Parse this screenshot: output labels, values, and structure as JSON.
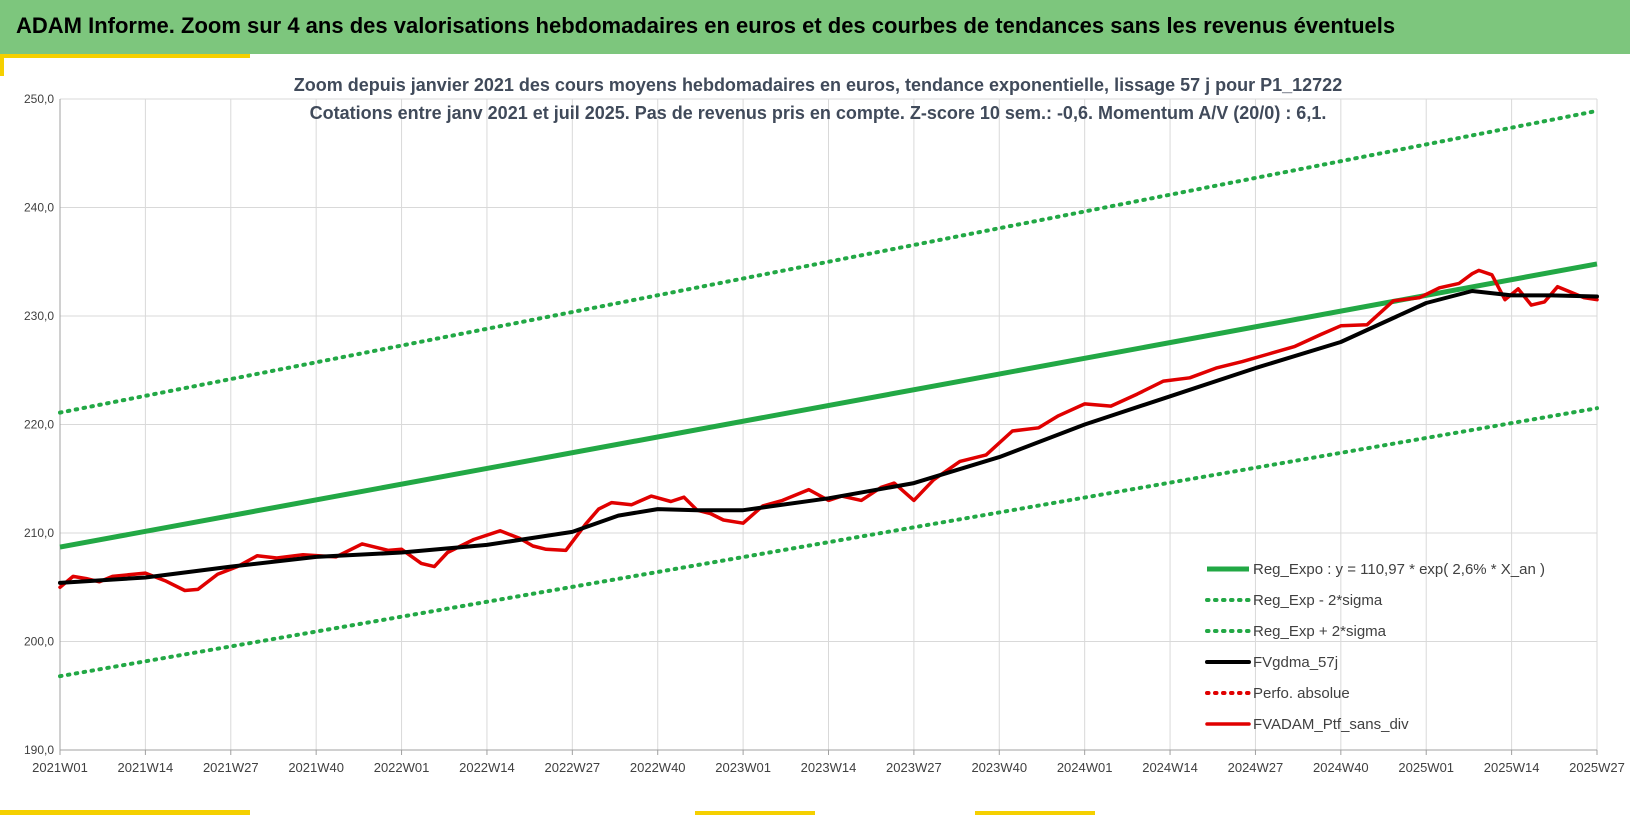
{
  "banner": {
    "title": "ADAM Informe. Zoom sur 4 ans des valorisations hebdomadaires en euros et des courbes de tendances sans les revenus éventuels"
  },
  "colors": {
    "banner_bg": "#7dc67d",
    "accent_yellow": "#f5d000",
    "trend": "#22a845",
    "band": "#22a845",
    "smoothed": "#000000",
    "portfolio": "#e00000",
    "perf_absolue": "#e00000"
  },
  "chart_data": {
    "type": "line",
    "title": "Zoom depuis janvier 2021 des cours moyens hebdomadaires  en euros, tendance exponentielle, lissage 57 j pour P1_12722",
    "subtitle": "Cotations  entre janv 2021 et juil 2025. Pas de revenus pris en compte. Z-score 10 sem.: -0,6. Momentum A/V (20/0) : 6,1.",
    "xlabel": "",
    "ylabel": "",
    "ylim": [
      190,
      250
    ],
    "y_ticks": [
      "190,0",
      "200,0",
      "210,0",
      "220,0",
      "230,0",
      "240,0",
      "250,0"
    ],
    "x_ticks": [
      "2021W01",
      "2021W14",
      "2021W27",
      "2021W40",
      "2022W01",
      "2022W14",
      "2022W27",
      "2022W40",
      "2023W01",
      "2023W14",
      "2023W27",
      "2023W40",
      "2024W01",
      "2024W14",
      "2024W27",
      "2024W40",
      "2025W01",
      "2025W14",
      "2025W27"
    ],
    "grid": true,
    "legend_position": "bottom-right",
    "series": [
      {
        "name": "Reg_Expo : y = 110,97 * exp( 2,6% *  X_an )",
        "style": "solid",
        "color": "#22a845",
        "x": [
          "2021W01",
          "2025W27"
        ],
        "values": [
          208.7,
          234.8
        ]
      },
      {
        "name": "Reg_Exp - 2*sigma",
        "style": "dotted",
        "color": "#22a845",
        "x": [
          "2021W01",
          "2025W27"
        ],
        "values": [
          196.8,
          221.5
        ]
      },
      {
        "name": "Reg_Exp + 2*sigma",
        "style": "dotted",
        "color": "#22a845",
        "x": [
          "2021W01",
          "2025W27"
        ],
        "values": [
          221.1,
          248.9
        ]
      },
      {
        "name": "FVgdma_57j",
        "style": "solid",
        "color": "#000000",
        "x": [
          "2021W01",
          "2021W14",
          "2021W27",
          "2021W40",
          "2022W01",
          "2022W14",
          "2022W27",
          "2022W34",
          "2022W40",
          "2022W46",
          "2023W01",
          "2023W14",
          "2023W27",
          "2023W40",
          "2024W01",
          "2024W14",
          "2024W27",
          "2024W40",
          "2025W01",
          "2025W08",
          "2025W14",
          "2025W20",
          "2025W27"
        ],
        "values": [
          205.4,
          205.9,
          206.9,
          207.8,
          208.2,
          208.9,
          210.1,
          211.6,
          212.2,
          212.1,
          212.1,
          213.2,
          214.6,
          217.0,
          220.0,
          222.6,
          225.2,
          227.6,
          231.2,
          232.3,
          231.9,
          231.9,
          231.8
        ]
      },
      {
        "name": "Perfo. absolue",
        "style": "dotted",
        "color": "#e00000",
        "x": [],
        "values": []
      },
      {
        "name": "FVADAM_Ptf_sans_div",
        "style": "solid",
        "color": "#e00000",
        "x": [
          "2021W01",
          "2021W03",
          "2021W05",
          "2021W07",
          "2021W09",
          "2021W14",
          "2021W17",
          "2021W20",
          "2021W22",
          "2021W25",
          "2021W28",
          "2021W31",
          "2021W34",
          "2021W38",
          "2021W43",
          "2021W47",
          "2021W51",
          "2022W01",
          "2022W04",
          "2022W06",
          "2022W08",
          "2022W12",
          "2022W16",
          "2022W19",
          "2022W21",
          "2022W23",
          "2022W26",
          "2022W29",
          "2022W31",
          "2022W33",
          "2022W36",
          "2022W39",
          "2022W42",
          "2022W44",
          "2022W46",
          "2022W48",
          "2022W50",
          "2023W01",
          "2023W04",
          "2023W07",
          "2023W11",
          "2023W14",
          "2023W16",
          "2023W19",
          "2023W22",
          "2023W24",
          "2023W27",
          "2023W30",
          "2023W34",
          "2023W38",
          "2023W42",
          "2023W46",
          "2023W49",
          "2024W01",
          "2024W05",
          "2024W09",
          "2024W13",
          "2024W17",
          "2024W21",
          "2024W25",
          "2024W29",
          "2024W33",
          "2024W37",
          "2024W40",
          "2024W44",
          "2024W48",
          "2024W52",
          "2025W03",
          "2025W06",
          "2025W08",
          "2025W09",
          "2025W11",
          "2025W13",
          "2025W15",
          "2025W17",
          "2025W19",
          "2025W21",
          "2025W23",
          "2025W25",
          "2025W27"
        ],
        "values": [
          205.0,
          206.0,
          205.8,
          205.5,
          206.0,
          206.3,
          205.6,
          204.7,
          204.8,
          206.2,
          206.9,
          207.9,
          207.7,
          208.0,
          207.8,
          209.0,
          208.4,
          208.5,
          207.2,
          206.9,
          208.2,
          209.4,
          210.2,
          209.5,
          208.8,
          208.5,
          208.4,
          210.8,
          212.2,
          212.8,
          212.6,
          213.4,
          212.9,
          213.3,
          212.1,
          211.8,
          211.2,
          210.9,
          212.5,
          213.0,
          214.0,
          213.0,
          213.4,
          213.0,
          214.2,
          214.6,
          213.0,
          214.9,
          216.6,
          217.2,
          219.4,
          219.7,
          220.8,
          221.9,
          221.7,
          222.8,
          224.0,
          224.3,
          225.2,
          225.8,
          226.5,
          227.2,
          228.3,
          229.1,
          229.2,
          231.4,
          231.7,
          232.6,
          233.0,
          233.9,
          234.2,
          233.8,
          231.5,
          232.5,
          231.0,
          231.3,
          232.7,
          232.2,
          231.7,
          231.5
        ]
      }
    ]
  }
}
